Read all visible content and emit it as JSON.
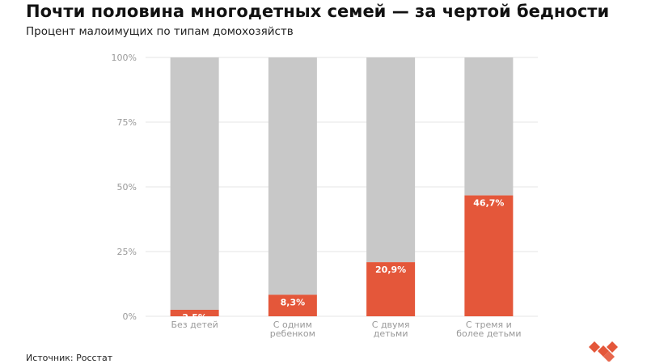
{
  "title": "Почти половина многодетных семей — за чертой бедности",
  "subtitle": "Процент малоимущих по типам домохозяйств",
  "source": "Источник: Росстат",
  "colors": {
    "highlight": "#e4573a",
    "remainder": "#c8c8c8",
    "grid": "#e6e6e6",
    "text_muted": "#999999"
  },
  "chart_data": {
    "type": "bar",
    "stacked": true,
    "categories": [
      [
        "Без детей"
      ],
      [
        "С одним",
        "ребенком"
      ],
      [
        "С двумя",
        "детьми"
      ],
      [
        "С тремя и",
        "более детьми"
      ]
    ],
    "values": [
      2.5,
      8.3,
      20.9,
      46.7
    ],
    "value_labels": [
      "2,5%",
      "8,3%",
      "20,9%",
      "46,7%"
    ],
    "total": 100,
    "ylim": [
      0,
      100
    ],
    "yticks": [
      0,
      25,
      50,
      75,
      100
    ],
    "ytick_labels": [
      "0%",
      "25%",
      "50%",
      "75%",
      "100%"
    ],
    "grid": true
  }
}
